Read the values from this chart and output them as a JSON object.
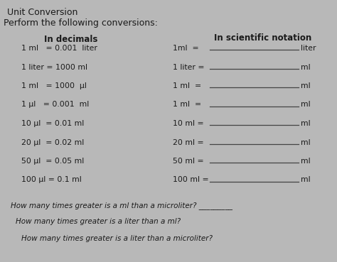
{
  "title": "Unit Conversion",
  "subtitle": "Perform the following conversions:",
  "bg_color": "#b8b8b8",
  "text_color": "#1a1a1a",
  "left_header": "In decimals",
  "right_header": "In scientific notation",
  "left_rows": [
    "1 ml   = 0.001  liter",
    "1 liter = 1000 ml",
    "1 ml   = 1000  μl",
    "1 μl   = 0.001  ml",
    "10 μl  = 0.01 ml",
    "20 μl  = 0.02 ml",
    "50 μl  = 0.05 ml",
    "100 μl = 0.1 ml"
  ],
  "right_labels": [
    "1ml  =",
    "1 liter =",
    "1 ml  =",
    "1 ml  =",
    "10 ml =",
    "20 ml =",
    "50 ml =",
    "100 ml ="
  ],
  "right_units": [
    "liter",
    "ml",
    "ml",
    "ml",
    "ml",
    "ml",
    "ml",
    "ml"
  ],
  "q1": "How many times greater is a ml than a microliter? _________",
  "q2": "How many times greater is a liter than a ml?",
  "q3": "How many times greater is a liter than a microliter?",
  "fontsize_title": 9,
  "fontsize_subtitle": 9,
  "fontsize_header": 8.5,
  "fontsize_body": 7.8,
  "fontsize_q": 7.5
}
